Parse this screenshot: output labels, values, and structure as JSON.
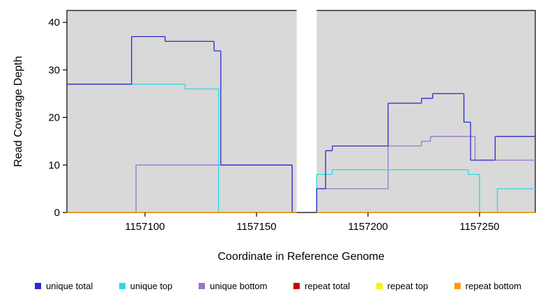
{
  "chart_data": {
    "type": "line",
    "subtype": "step-coverage",
    "title": "",
    "xlabel": "Coordinate in Reference Genome",
    "ylabel": "Read Coverage Depth",
    "xlim": [
      1157065,
      1157275
    ],
    "ylim": [
      0,
      42.5
    ],
    "xticks": [
      1157100,
      1157150,
      1157200,
      1157250
    ],
    "yticks": [
      0,
      10,
      20,
      30,
      40
    ],
    "grid": false,
    "legend_position": "bottom",
    "plot_background": "#d9d9d9",
    "gap": {
      "start": 1157168,
      "end": 1157177
    },
    "series": [
      {
        "name": "unique bottom",
        "color": "#9b72cf",
        "points": [
          [
            1157065,
            0
          ],
          [
            1157096,
            10
          ],
          [
            1157166,
            0
          ],
          [
            1157177,
            5
          ],
          [
            1157209,
            14
          ],
          [
            1157224,
            15
          ],
          [
            1157228,
            16
          ],
          [
            1157248,
            11
          ]
        ]
      },
      {
        "name": "unique top",
        "color": "#2fd6e6",
        "points": [
          [
            1157065,
            27
          ],
          [
            1157118,
            26
          ],
          [
            1157133,
            0
          ],
          [
            1157177,
            8
          ],
          [
            1157184,
            9
          ],
          [
            1157245,
            8
          ],
          [
            1157250,
            0
          ],
          [
            1157258,
            5
          ]
        ]
      },
      {
        "name": "unique total",
        "color": "#2929cc",
        "points": [
          [
            1157065,
            27
          ],
          [
            1157094,
            37
          ],
          [
            1157109,
            36
          ],
          [
            1157131,
            34
          ],
          [
            1157134,
            10
          ],
          [
            1157166,
            0
          ],
          [
            1157177,
            5
          ],
          [
            1157181,
            13
          ],
          [
            1157184,
            14
          ],
          [
            1157209,
            23
          ],
          [
            1157224,
            24
          ],
          [
            1157229,
            25
          ],
          [
            1157243,
            19
          ],
          [
            1157246,
            11
          ],
          [
            1157257,
            16
          ]
        ]
      },
      {
        "name": "repeat total",
        "color": "#cc0000",
        "points": [
          [
            1157065,
            0
          ]
        ]
      },
      {
        "name": "repeat top",
        "color": "#f5f500",
        "points": [
          [
            1157065,
            0
          ]
        ]
      },
      {
        "name": "repeat bottom",
        "color": "#ff9900",
        "points": [
          [
            1157065,
            0
          ]
        ]
      }
    ]
  },
  "legend": {
    "items": [
      {
        "label": "unique total",
        "color": "#2929cc"
      },
      {
        "label": "unique top",
        "color": "#2fd6e6"
      },
      {
        "label": "unique bottom",
        "color": "#9b72cf"
      },
      {
        "label": "repeat total",
        "color": "#cc0000"
      },
      {
        "label": "repeat top",
        "color": "#f5f500"
      },
      {
        "label": "repeat bottom",
        "color": "#ff9900"
      }
    ]
  }
}
